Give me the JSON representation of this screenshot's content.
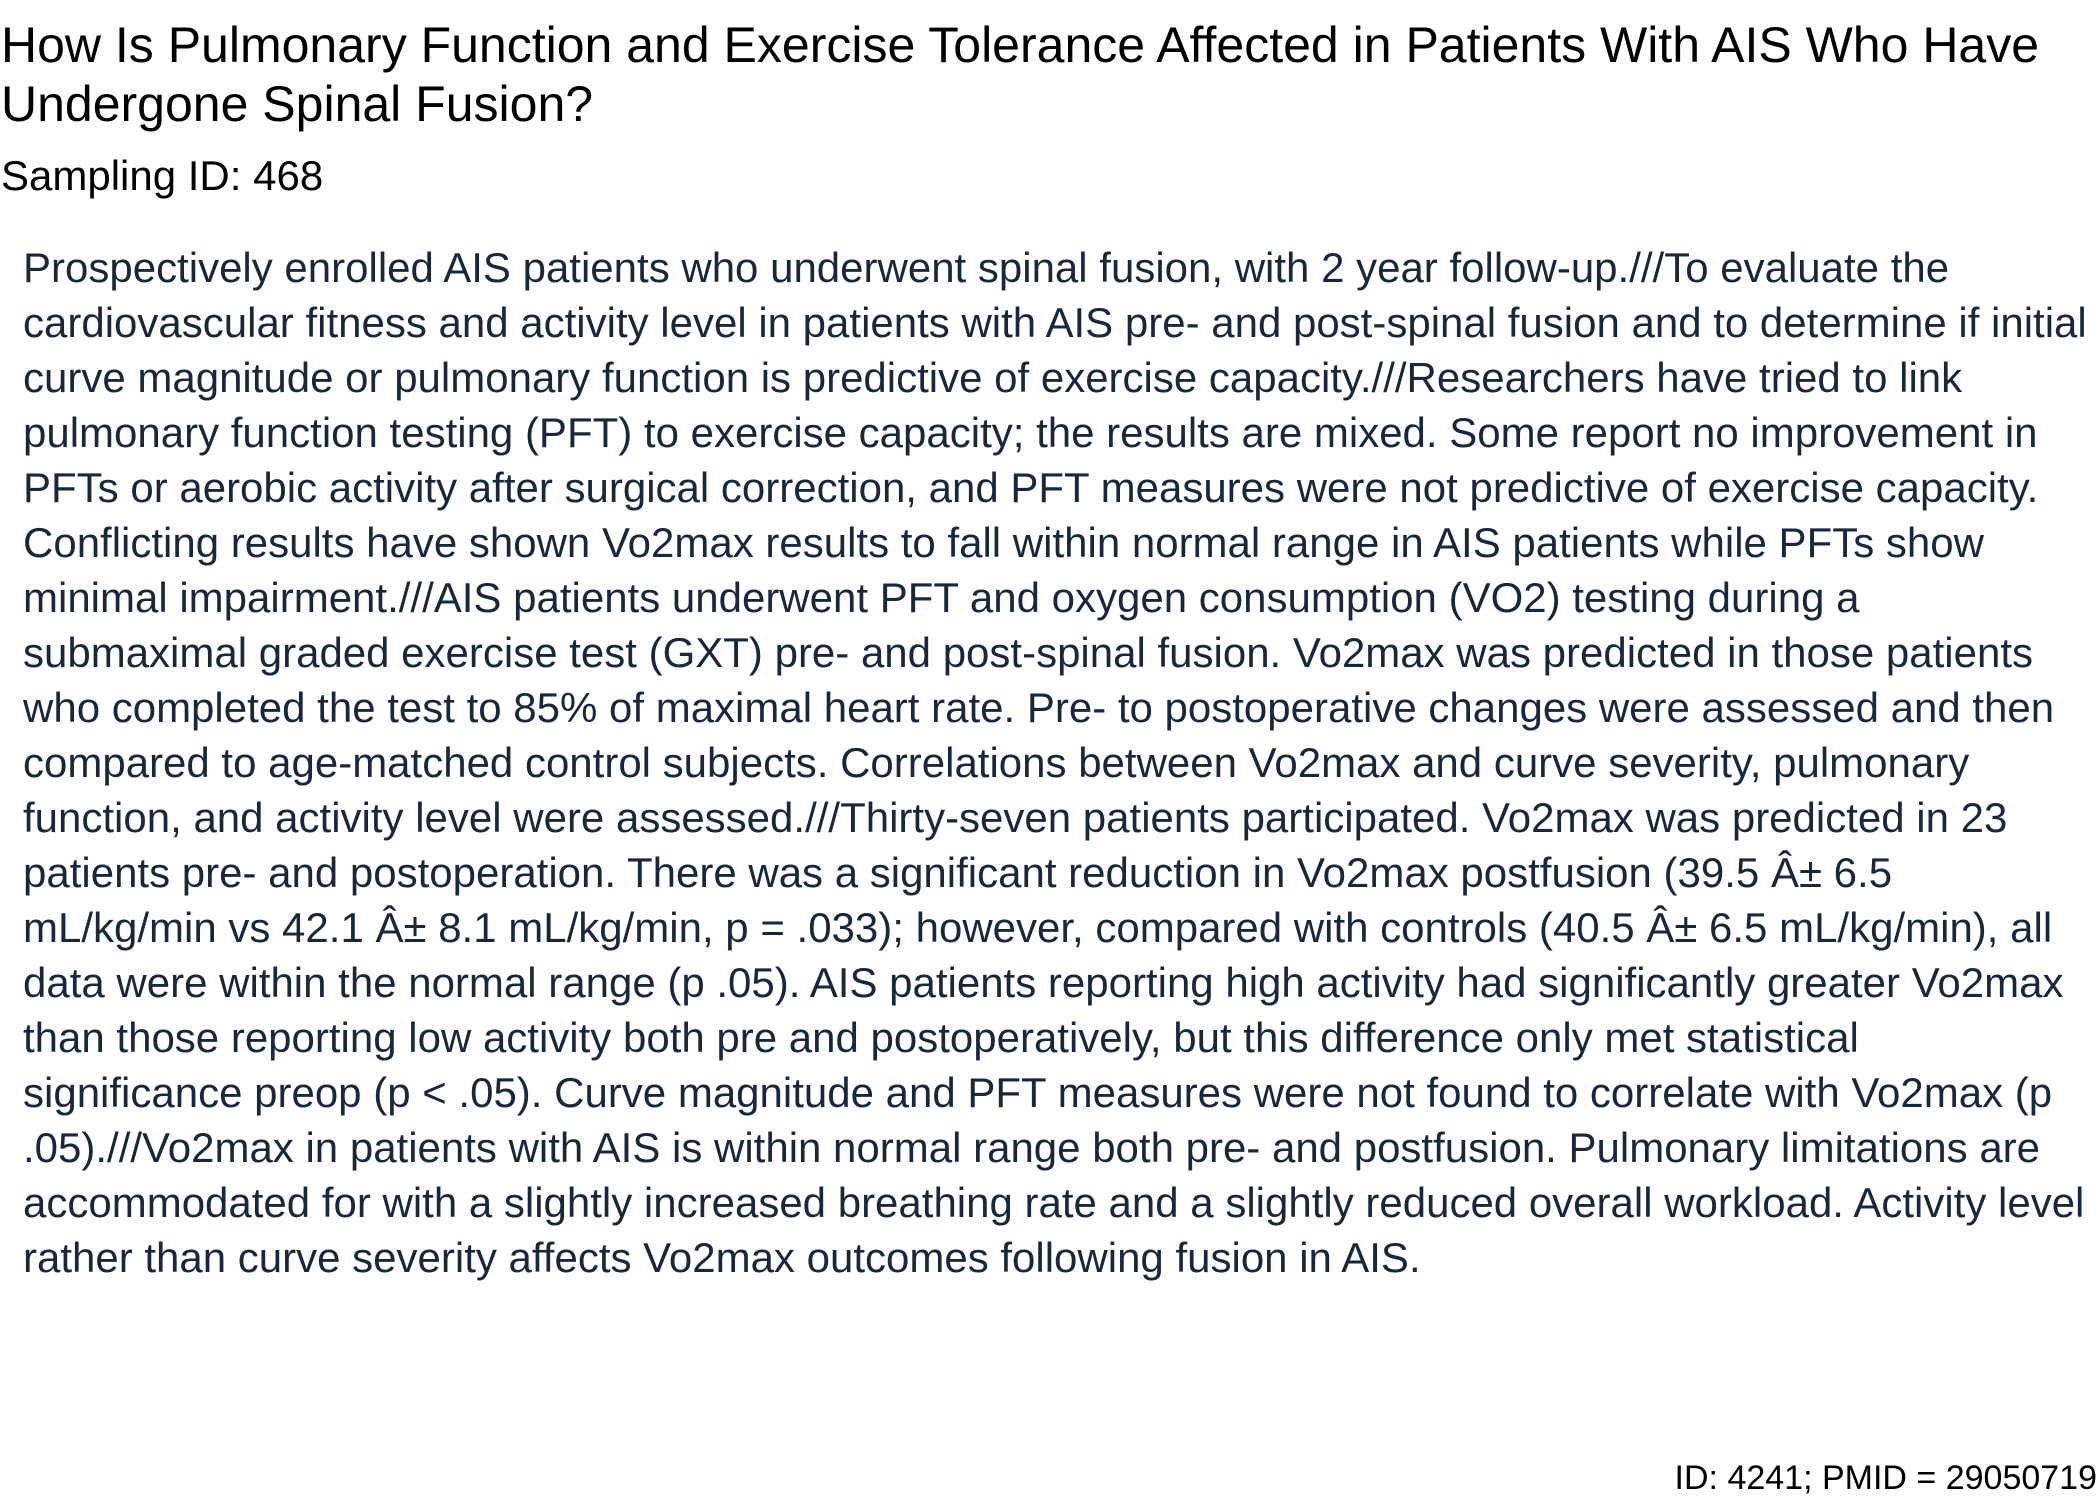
{
  "document": {
    "title": "How Is Pulmonary Function and Exercise Tolerance Affected in Patients With AIS Who Have Undergone Spinal Fusion?",
    "sampling_id": "Sampling ID: 468",
    "abstract": "Prospectively enrolled AIS patients who underwent spinal fusion, with 2 year follow-up.///To evaluate the cardiovascular fitness and activity level in patients with AIS pre- and post-spinal fusion and to determine if initial curve magnitude or pulmonary function is predictive of exercise capacity.///Researchers have tried to link pulmonary function testing (PFT) to exercise capacity; the results are mixed. Some report no improvement in PFTs or aerobic activity after surgical correction, and PFT measures were not predictive of exercise capacity. Conflicting results have shown Vo2max results to fall within normal range in AIS patients while PFTs show minimal impairment.///AIS patients underwent PFT and oxygen consumption (VO2) testing during a submaximal graded exercise test (GXT) pre- and post-spinal fusion. Vo2max was predicted in those patients who completed the test to 85% of maximal heart rate. Pre- to postoperative changes were assessed and then compared to age-matched control subjects. Correlations between Vo2max and curve severity, pulmonary function, and activity level were assessed.///Thirty-seven patients participated. Vo2max was predicted in 23 patients pre- and postoperation. There was a significant reduction in Vo2max postfusion (39.5 Â± 6.5 mL/kg/min vs 42.1 Â± 8.1 mL/kg/min, p = .033); however, compared with controls (40.5 Â± 6.5 mL/kg/min), all data were within the normal range (p .05). AIS patients reporting high activity had significantly greater Vo2max than those reporting low activity both pre and postoperatively, but this difference only met statistical significance preop (p < .05). Curve magnitude and PFT measures were not found to correlate with Vo2max (p .05).///Vo2max in patients with AIS is within normal range both pre- and postfusion. Pulmonary limitations are accommodated for with a slightly increased breathing rate and a slightly reduced overall workload. Activity level rather than curve severity affects Vo2max outcomes following fusion in AIS.",
    "footer_id": "ID: 4241; PMID = 29050719"
  },
  "colors": {
    "title_text": "#000000",
    "abstract_text": "#17273c",
    "background": "#ffffff"
  }
}
